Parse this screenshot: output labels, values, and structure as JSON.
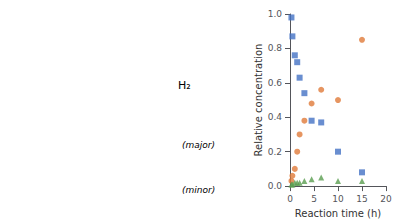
{
  "chart_data": {
    "type": "scatter",
    "xlabel": "Reaction time (h)",
    "ylabel": "Relative concentration",
    "xlim": [
      0,
      20
    ],
    "ylim": [
      0,
      1.0
    ],
    "xticks": [
      0,
      5,
      10,
      15,
      20
    ],
    "yticks": [
      {
        "value": 0.0,
        "label": "0.0"
      },
      0.2,
      0.4,
      0.6,
      0.8,
      {
        "value": 1.0,
        "label": "1.0"
      }
    ],
    "grid": false,
    "annotations": [
      "H₂",
      "(major)",
      "(minor)"
    ],
    "series": [
      {
        "color": "#4472c4",
        "marker": "square",
        "x": [
          0.3,
          0.5,
          1.0,
          1.5,
          2.0,
          3.0,
          4.5,
          6.5,
          10.0,
          15.0
        ],
        "values": [
          0.98,
          0.87,
          0.76,
          0.72,
          0.63,
          0.54,
          0.38,
          0.37,
          0.2,
          0.08
        ]
      },
      {
        "color": "#e07b39",
        "marker": "circle",
        "x": [
          0.3,
          0.5,
          1.0,
          1.5,
          2.0,
          3.0,
          4.5,
          6.5,
          10.0,
          15.0
        ],
        "values": [
          0.03,
          0.06,
          0.1,
          0.2,
          0.3,
          0.38,
          0.48,
          0.56,
          0.5,
          0.85
        ]
      },
      {
        "color": "#5a9e50",
        "marker": "triangle",
        "x": [
          0.3,
          0.5,
          1.0,
          1.5,
          2.0,
          3.0,
          4.5,
          6.5,
          10.0,
          15.0
        ],
        "values": [
          0.01,
          0.01,
          0.02,
          0.02,
          0.02,
          0.03,
          0.04,
          0.05,
          0.03,
          0.03
        ]
      }
    ]
  }
}
